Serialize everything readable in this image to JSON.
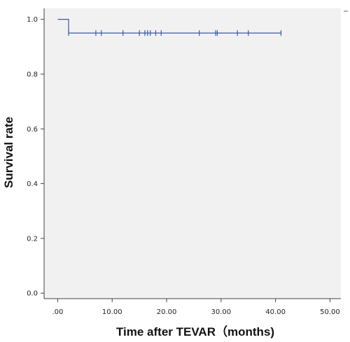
{
  "chart_data": {
    "type": "line",
    "subtype": "kaplan-meier",
    "xlabel": "Time after TEVAR（months)",
    "ylabel": "Survival rate",
    "xlim": [
      -2.5,
      52
    ],
    "ylim": [
      -0.02,
      1.04
    ],
    "xticks": [
      0,
      10,
      20,
      30,
      40,
      50
    ],
    "xtick_labels": [
      ".00",
      "10.00",
      "20.00",
      "30.00",
      "40.00",
      "50.00"
    ],
    "yticks": [
      0.0,
      0.2,
      0.4,
      0.6,
      0.8,
      1.0
    ],
    "ytick_labels": [
      "0.0",
      "0.2",
      "0.4",
      "0.6",
      "0.8",
      "1.0"
    ],
    "grid": false,
    "legend": "top-right, partially visible (dash marker only)",
    "series": [
      {
        "step": [
          [
            0,
            1.0
          ],
          [
            2,
            1.0
          ],
          [
            2,
            0.95
          ],
          [
            41,
            0.95
          ]
        ],
        "censored": [
          [
            2,
            0.95
          ],
          [
            7,
            0.95
          ],
          [
            8,
            0.95
          ],
          [
            12,
            0.95
          ],
          [
            15,
            0.95
          ],
          [
            16,
            0.95
          ],
          [
            16.5,
            0.95
          ],
          [
            17,
            0.95
          ],
          [
            18,
            0.95
          ],
          [
            19,
            0.95
          ],
          [
            26,
            0.95
          ],
          [
            29,
            0.95
          ],
          [
            29.3,
            0.95
          ],
          [
            33,
            0.95
          ],
          [
            35,
            0.95
          ],
          [
            41,
            0.95
          ]
        ]
      }
    ],
    "colors": {
      "background": "#f1f1f1",
      "line": "#3b5aa6",
      "axis": "#444444"
    }
  }
}
